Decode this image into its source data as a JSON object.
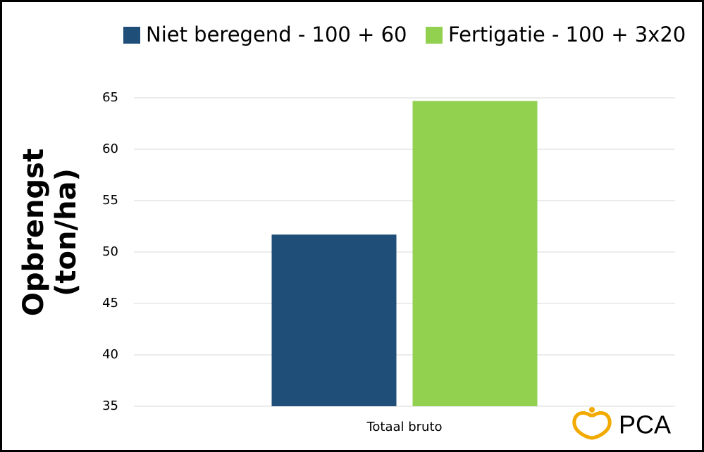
{
  "chart_data": {
    "type": "bar",
    "ylabel": [
      "Opbrengst",
      "(ton/ha)"
    ],
    "categories": [
      "Totaal bruto"
    ],
    "series": [
      {
        "name": "Niet beregend - 100 + 60",
        "color": "#1f4e79",
        "values": [
          51.7
        ]
      },
      {
        "name": "Fertigatie - 100 + 3x20",
        "color": "#92d050",
        "values": [
          64.7
        ]
      }
    ],
    "ylim": [
      35,
      65
    ],
    "yticks": [
      35,
      40,
      45,
      50,
      55,
      60,
      65
    ],
    "grid": true,
    "legend": "top"
  },
  "logo": "PCA"
}
